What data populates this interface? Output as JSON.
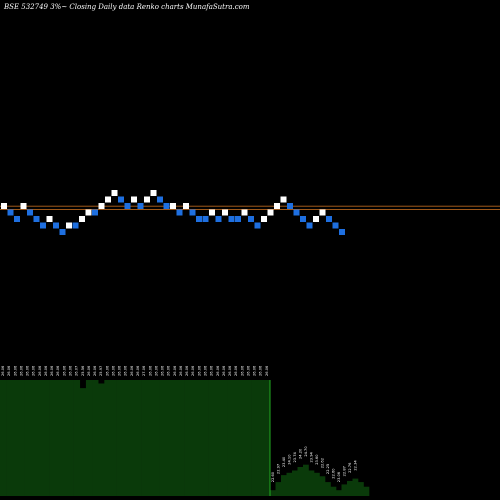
{
  "title": "BSE 532749 3%~  Closing Daily data  Renko  charts MunafaSutra.com",
  "colors": {
    "background": "#000000",
    "up_brick": "#ffffff",
    "down_brick": "#1e6fe0",
    "reference_line": "#b5651d",
    "volume_fill": "#0a3a0a",
    "volume_edge": "#22aa22",
    "label_text": "#ffffff"
  },
  "chart_data": {
    "type": "renko",
    "title": "BSE 532749 3%~  Closing Daily data  Renko  charts MunafaSutra.com",
    "grid": false,
    "bricks": [
      {
        "level": 0,
        "dir": "up"
      },
      {
        "level": -1,
        "dir": "down"
      },
      {
        "level": -2,
        "dir": "down"
      },
      {
        "level": 0,
        "dir": "up"
      },
      {
        "level": -1,
        "dir": "down"
      },
      {
        "level": -2,
        "dir": "down"
      },
      {
        "level": -3,
        "dir": "down"
      },
      {
        "level": -2,
        "dir": "up"
      },
      {
        "level": -3,
        "dir": "down"
      },
      {
        "level": -4,
        "dir": "down"
      },
      {
        "level": -3,
        "dir": "up"
      },
      {
        "level": -3,
        "dir": "down"
      },
      {
        "level": -2,
        "dir": "up"
      },
      {
        "level": -1,
        "dir": "up"
      },
      {
        "level": -1,
        "dir": "down"
      },
      {
        "level": 0,
        "dir": "up"
      },
      {
        "level": 1,
        "dir": "up"
      },
      {
        "level": 2,
        "dir": "up"
      },
      {
        "level": 1,
        "dir": "down"
      },
      {
        "level": 0,
        "dir": "down"
      },
      {
        "level": 1,
        "dir": "up"
      },
      {
        "level": 0,
        "dir": "down"
      },
      {
        "level": 1,
        "dir": "up"
      },
      {
        "level": 2,
        "dir": "up"
      },
      {
        "level": 1,
        "dir": "down"
      },
      {
        "level": 0,
        "dir": "down"
      },
      {
        "level": 0,
        "dir": "up"
      },
      {
        "level": -1,
        "dir": "down"
      },
      {
        "level": 0,
        "dir": "up"
      },
      {
        "level": -1,
        "dir": "down"
      },
      {
        "level": -2,
        "dir": "down"
      },
      {
        "level": -2,
        "dir": "down"
      },
      {
        "level": -1,
        "dir": "up"
      },
      {
        "level": -2,
        "dir": "down"
      },
      {
        "level": -1,
        "dir": "up"
      },
      {
        "level": -2,
        "dir": "down"
      },
      {
        "level": -2,
        "dir": "down"
      },
      {
        "level": -1,
        "dir": "up"
      },
      {
        "level": -2,
        "dir": "down"
      },
      {
        "level": -3,
        "dir": "down"
      },
      {
        "level": -2,
        "dir": "up"
      },
      {
        "level": -1,
        "dir": "up"
      },
      {
        "level": 0,
        "dir": "up"
      },
      {
        "level": 1,
        "dir": "up"
      },
      {
        "level": 0,
        "dir": "down"
      },
      {
        "level": -1,
        "dir": "down"
      },
      {
        "level": -2,
        "dir": "down"
      },
      {
        "level": -3,
        "dir": "down"
      },
      {
        "level": -2,
        "dir": "up"
      },
      {
        "level": -1,
        "dir": "up"
      },
      {
        "level": -2,
        "dir": "down"
      },
      {
        "level": -3,
        "dir": "down"
      },
      {
        "level": -4,
        "dir": "down"
      }
    ],
    "reference_levels": [
      0,
      -0.5
    ],
    "volume": [
      1,
      1,
      1,
      1,
      1,
      1,
      1,
      1,
      1,
      1,
      1,
      1,
      1,
      0.93,
      1,
      1,
      0.97,
      1,
      1,
      1,
      1,
      1,
      1,
      1,
      1,
      1,
      1,
      1,
      1,
      1,
      1,
      1,
      1,
      1,
      1,
      1,
      1,
      1,
      1,
      1,
      1,
      1,
      1,
      1,
      0.05,
      0.12,
      0.18,
      0.2,
      0.22,
      0.25,
      0.27,
      0.22,
      0.2,
      0.17,
      0.12,
      0.08,
      0.05,
      0.1,
      0.13,
      0.15,
      0.12,
      0.08
    ],
    "price_labels": [
      "26.06",
      "26.06",
      "26.06",
      "26.06",
      "26.06",
      "26.06",
      "26.06",
      "26.06",
      "26.06",
      "26.06",
      "26.06",
      "26.06",
      "26.07",
      "25.56",
      "26.06",
      "26.06",
      "25.97",
      "26.06",
      "26.06",
      "26.06",
      "26.06",
      "26.06",
      "26.06",
      "27.06",
      "26.06",
      "26.06",
      "26.06",
      "26.06",
      "26.06",
      "26.06",
      "26.06",
      "26.06",
      "26.06",
      "26.06",
      "26.06",
      "26.06",
      "26.06",
      "26.06",
      "26.06",
      "26.06",
      "26.06",
      "26.06",
      "26.06",
      "26.06",
      "22.60",
      "22.97",
      "23.40",
      "24.10",
      "23.74",
      "24.20",
      "24.70",
      "23.94",
      "23.60",
      "22.62",
      "22.25",
      "22.60",
      "23.06",
      "22.87",
      "22.76",
      "22.34"
    ]
  }
}
